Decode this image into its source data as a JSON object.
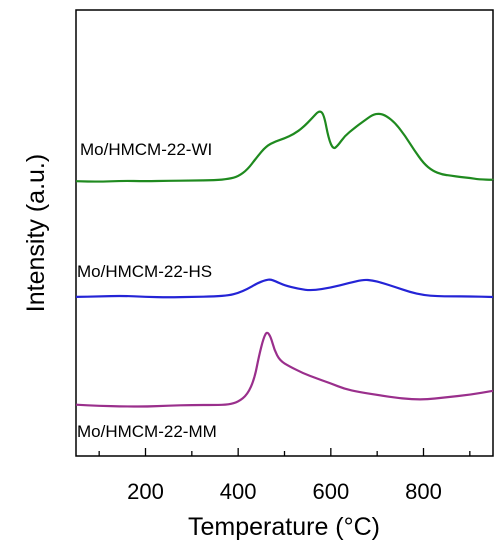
{
  "chart_data": {
    "type": "line",
    "xlabel": "Temperature (°C)",
    "ylabel": "Intensity (a.u.)",
    "xlim": [
      50,
      950
    ],
    "x_ticks": [
      200,
      400,
      600,
      800
    ],
    "y_ticks_shown": false,
    "grid": false,
    "legend": "labels placed next to each curve",
    "series": [
      {
        "name": "Mo/HMCM-22-WI",
        "color": "#1f8a1f",
        "x": [
          50,
          100,
          150,
          200,
          250,
          300,
          350,
          380,
          400,
          420,
          440,
          460,
          480,
          500,
          520,
          540,
          560,
          575,
          585,
          595,
          605,
          615,
          630,
          650,
          670,
          690,
          705,
          720,
          740,
          760,
          780,
          800,
          820,
          840,
          860,
          880,
          900,
          920,
          950
        ],
        "y": [
          0.02,
          0.02,
          0.03,
          0.02,
          0.02,
          0.02,
          0.03,
          0.05,
          0.08,
          0.15,
          0.28,
          0.4,
          0.46,
          0.5,
          0.55,
          0.62,
          0.72,
          0.8,
          0.76,
          0.5,
          0.38,
          0.42,
          0.52,
          0.6,
          0.68,
          0.76,
          0.78,
          0.75,
          0.66,
          0.52,
          0.36,
          0.22,
          0.14,
          0.1,
          0.08,
          0.06,
          0.05,
          0.04,
          0.04
        ]
      },
      {
        "name": "Mo/HMCM-22-HS",
        "color": "#2424d6",
        "x": [
          50,
          100,
          150,
          200,
          250,
          300,
          350,
          380,
          400,
          420,
          440,
          460,
          470,
          480,
          500,
          530,
          560,
          600,
          640,
          670,
          690,
          710,
          740,
          770,
          800,
          830,
          860,
          900,
          950
        ],
        "y": [
          0.02,
          0.02,
          0.03,
          0.02,
          0.02,
          0.03,
          0.03,
          0.04,
          0.08,
          0.16,
          0.27,
          0.34,
          0.34,
          0.3,
          0.22,
          0.16,
          0.14,
          0.2,
          0.28,
          0.33,
          0.31,
          0.27,
          0.2,
          0.12,
          0.06,
          0.03,
          0.02,
          0.02,
          0.02
        ]
      },
      {
        "name": "Mo/HMCM-22-MM",
        "color": "#9a2f8c",
        "x": [
          50,
          100,
          150,
          200,
          250,
          300,
          350,
          380,
          400,
          420,
          435,
          445,
          455,
          462,
          470,
          478,
          490,
          510,
          540,
          570,
          600,
          630,
          660,
          700,
          750,
          800,
          850,
          900,
          950
        ],
        "y": [
          0.1,
          0.07,
          0.05,
          0.02,
          0.04,
          0.06,
          0.08,
          0.12,
          0.25,
          0.55,
          1.2,
          2.2,
          3.0,
          3.3,
          3.1,
          2.5,
          2.0,
          1.75,
          1.45,
          1.25,
          1.05,
          0.8,
          0.65,
          0.5,
          0.35,
          0.32,
          0.45,
          0.55,
          0.7
        ]
      }
    ]
  }
}
